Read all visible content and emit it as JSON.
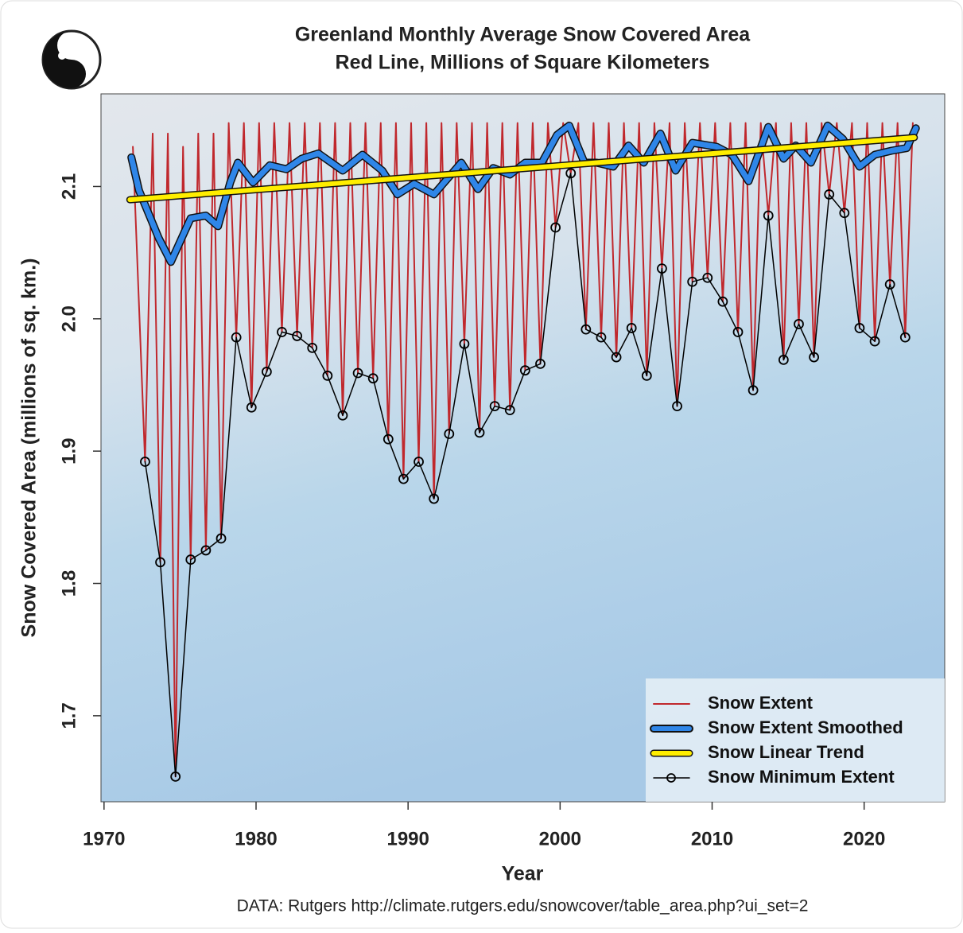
{
  "chart_data": {
    "type": "line",
    "title": "Greenland Monthly Average Snow Covered Area",
    "subtitle": "Red Line, Millions of Square Kilometers",
    "x_label": "Year",
    "y_label": "Snow Covered Area (millions of sq. km.)",
    "source": "DATA: Rutgers http://climate.rutgers.edu/snowcover/table_area.php?ui_set=2",
    "xlim": [
      1969.8,
      2025.3
    ],
    "ylim": [
      1.635,
      2.17
    ],
    "xticks": [
      1970,
      1980,
      1990,
      2000,
      2010,
      2020
    ],
    "yticks": [
      1.7,
      1.8,
      1.9,
      {
        "value": 2,
        "label": "2.0"
      },
      2.1
    ],
    "legend": "bottom-right",
    "series": [
      {
        "name": "Snow Extent",
        "color": "#c0282d",
        "width": 2,
        "x": [
          1971.9,
          1972.7,
          1973.2,
          1973.7,
          1974.2,
          1974.7,
          1975.2,
          1975.7,
          1976.2,
          1976.7,
          1977.2,
          1977.7,
          1978.2,
          1978.7,
          1979.2,
          1979.7,
          1980.2,
          1980.7,
          1981.2,
          1981.7,
          1982.2,
          1982.7,
          1983.2,
          1983.7,
          1984.2,
          1984.7,
          1985.2,
          1985.7,
          1986.2,
          1986.7,
          1987.2,
          1987.7,
          1988.2,
          1988.7,
          1989.2,
          1989.7,
          1990.2,
          1990.7,
          1991.2,
          1991.7,
          1992.2,
          1992.7,
          1993.2,
          1993.7,
          1994.2,
          1994.7,
          1995.2,
          1995.7,
          1996.2,
          1996.7,
          1997.2,
          1997.7,
          1998.2,
          1998.7,
          1999.2,
          1999.7,
          2000.2,
          2000.7,
          2001.2,
          2001.7,
          2002.2,
          2002.7,
          2003.2,
          2003.7,
          2004.2,
          2004.7,
          2005.2,
          2005.7,
          2006.2,
          2006.7,
          2007.2,
          2007.7,
          2008.2,
          2008.7,
          2009.2,
          2009.7,
          2010.2,
          2010.7,
          2011.2,
          2011.7,
          2012.2,
          2012.7,
          2013.2,
          2013.7,
          2014.2,
          2014.7,
          2015.2,
          2015.7,
          2016.2,
          2016.7,
          2017.2,
          2017.7,
          2018.2,
          2018.7,
          2019.2,
          2019.7,
          2020.2,
          2020.7,
          2021.2,
          2021.7,
          2022.2,
          2022.7,
          2023.2
        ],
        "values": [
          2.13,
          1.892,
          2.14,
          1.816,
          2.14,
          1.654,
          2.13,
          1.818,
          2.14,
          1.825,
          2.14,
          1.834,
          2.148,
          1.986,
          2.148,
          1.933,
          2.148,
          1.96,
          2.148,
          1.99,
          2.148,
          1.987,
          2.148,
          1.978,
          2.148,
          1.957,
          2.148,
          1.927,
          2.148,
          1.959,
          2.148,
          1.955,
          2.148,
          1.909,
          2.148,
          1.879,
          2.148,
          1.892,
          2.148,
          1.864,
          2.148,
          1.913,
          2.148,
          1.981,
          2.148,
          1.914,
          2.148,
          1.934,
          2.148,
          1.931,
          2.148,
          1.961,
          2.148,
          1.966,
          2.148,
          2.069,
          2.148,
          2.11,
          2.148,
          1.992,
          2.148,
          1.986,
          2.148,
          1.971,
          2.148,
          1.993,
          2.148,
          1.957,
          2.148,
          2.038,
          2.148,
          1.934,
          2.148,
          2.028,
          2.148,
          2.031,
          2.148,
          2.013,
          2.148,
          1.99,
          2.148,
          1.946,
          2.148,
          2.078,
          2.148,
          1.969,
          2.148,
          1.996,
          2.148,
          1.971,
          2.148,
          2.094,
          2.148,
          2.08,
          2.148,
          1.993,
          2.148,
          1.983,
          2.148,
          2.026,
          2.148,
          1.986,
          2.148
        ]
      },
      {
        "name": "Snow Extent Smoothed",
        "color": "#2f86e8",
        "width": 7,
        "x": [
          1971.8,
          1972.3,
          1973.6,
          1974.4,
          1975.7,
          1976.7,
          1977.5,
          1978.3,
          1978.8,
          1979.8,
          1980.9,
          1982.0,
          1983.0,
          1984.1,
          1985.7,
          1987.0,
          1988.3,
          1989.3,
          1990.4,
          1991.7,
          1993.5,
          1994.6,
          1995.6,
          1996.7,
          1997.7,
          1998.8,
          1999.8,
          2000.6,
          2001.6,
          2002.4,
          2003.5,
          2004.5,
          2005.5,
          2006.6,
          2007.6,
          2008.7,
          2010.3,
          2011.3,
          2012.4,
          2013.7,
          2014.7,
          2015.5,
          2016.5,
          2017.6,
          2018.6,
          2019.7,
          2020.7,
          2021.8,
          2022.8,
          2023.4
        ],
        "values": [
          2.122,
          2.097,
          2.061,
          2.043,
          2.076,
          2.078,
          2.07,
          2.103,
          2.118,
          2.103,
          2.116,
          2.113,
          2.121,
          2.125,
          2.112,
          2.124,
          2.112,
          2.094,
          2.102,
          2.094,
          2.118,
          2.098,
          2.114,
          2.109,
          2.118,
          2.118,
          2.139,
          2.146,
          2.118,
          2.118,
          2.115,
          2.131,
          2.118,
          2.14,
          2.112,
          2.133,
          2.13,
          2.124,
          2.104,
          2.145,
          2.121,
          2.131,
          2.118,
          2.146,
          2.136,
          2.115,
          2.124,
          2.127,
          2.129,
          2.144
        ]
      },
      {
        "name": "Snow Linear Trend",
        "color": "#ffee00",
        "width": 6,
        "x": [
          1971.7,
          2023.3
        ],
        "values": [
          2.09,
          2.137
        ]
      },
      {
        "name": "Snow Minimum Extent",
        "color": "#000000",
        "width": 1.5,
        "markers": true,
        "x": [
          1972.7,
          1973.7,
          1974.7,
          1975.7,
          1976.7,
          1977.7,
          1978.7,
          1979.7,
          1980.7,
          1981.7,
          1982.7,
          1983.7,
          1984.7,
          1985.7,
          1986.7,
          1987.7,
          1988.7,
          1989.7,
          1990.7,
          1991.7,
          1992.7,
          1993.7,
          1994.7,
          1995.7,
          1996.7,
          1997.7,
          1998.7,
          1999.7,
          2000.7,
          2001.7,
          2002.7,
          2003.7,
          2004.7,
          2005.7,
          2006.7,
          2007.7,
          2008.7,
          2009.7,
          2010.7,
          2011.7,
          2012.7,
          2013.7,
          2014.7,
          2015.7,
          2016.7,
          2017.7,
          2018.7,
          2019.7,
          2020.7,
          2021.7,
          2022.7
        ],
        "values": [
          1.892,
          1.816,
          1.654,
          1.818,
          1.825,
          1.834,
          1.986,
          1.933,
          1.96,
          1.99,
          1.987,
          1.978,
          1.957,
          1.927,
          1.959,
          1.955,
          1.909,
          1.879,
          1.892,
          1.864,
          1.913,
          1.981,
          1.914,
          1.934,
          1.931,
          1.961,
          1.966,
          2.069,
          2.11,
          1.992,
          1.986,
          1.971,
          1.993,
          1.957,
          2.038,
          1.934,
          2.028,
          2.031,
          2.013,
          1.99,
          1.946,
          2.078,
          1.969,
          1.996,
          1.971,
          2.094,
          2.08,
          1.993,
          1.983,
          2.026,
          1.986
        ]
      }
    ]
  }
}
